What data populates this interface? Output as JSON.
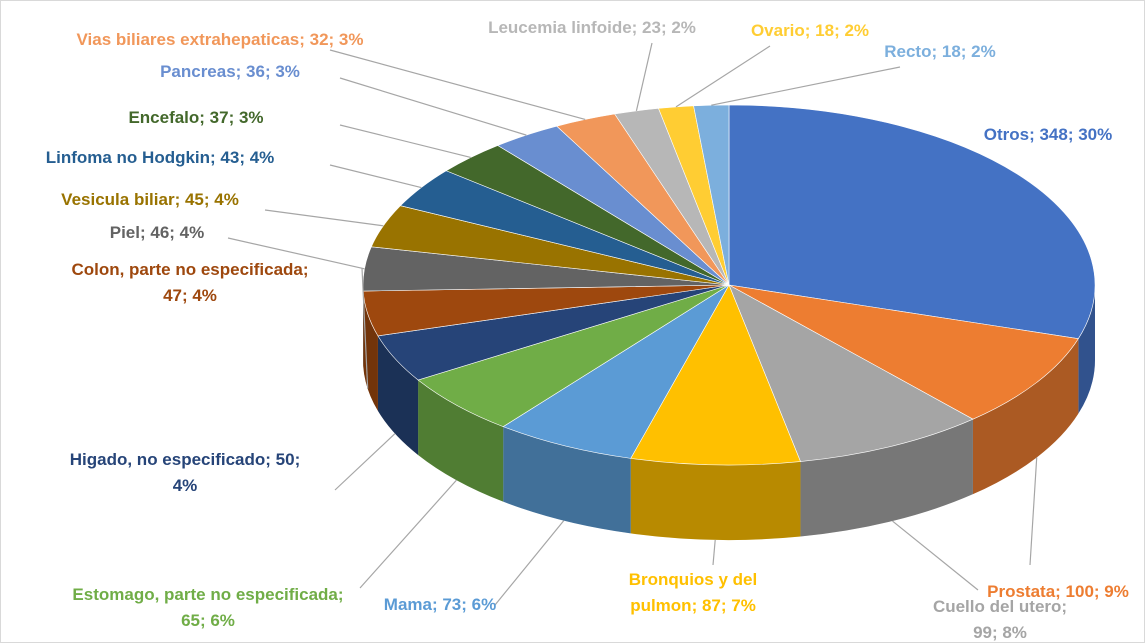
{
  "chart_data": {
    "type": "pie3d",
    "categories": [
      "Otros",
      "Prostata",
      "Cuello del utero",
      "Bronquios y del pulmon",
      "Mama",
      "Estomago, parte no especificada",
      "Higado, no especificado",
      "Colon, parte no especificada",
      "Piel",
      "Vesicula biliar",
      "Linfoma no Hodgkin",
      "Encefalo",
      "Pancreas",
      "Vias biliares extrahepaticas",
      "Leucemia linfoide",
      "Ovario",
      "Recto"
    ],
    "values": [
      348,
      100,
      99,
      87,
      73,
      65,
      50,
      47,
      46,
      45,
      43,
      37,
      36,
      32,
      23,
      18,
      18
    ],
    "value_labels": [
      "Otros; 348; 30%",
      "Prostata; 100; 9%",
      "Cuello del utero;\n99; 8%",
      "Bronquios y del\npulmon; 87; 7%",
      "Mama; 73; 6%",
      "Estomago, parte no especificada;\n65; 6%",
      "Higado, no especificado; 50;\n4%",
      "Colon, parte no especificada;\n47; 4%",
      "Piel; 46; 4%",
      "Vesicula biliar; 45; 4%",
      "Linfoma no Hodgkin; 43; 4%",
      "Encefalo; 37; 3%",
      "Pancreas; 36; 3%",
      "Vias biliares extrahepaticas; 32; 3%",
      "Leucemia linfoide; 23; 2%",
      "Ovario; 18; 2%",
      "Recto; 18; 2%"
    ],
    "colors": [
      "#4472c4",
      "#ed7d31",
      "#a5a5a5",
      "#ffc000",
      "#5b9bd5",
      "#70ad47",
      "#264478",
      "#9e480e",
      "#636363",
      "#997300",
      "#255e91",
      "#43682b",
      "#698ed0",
      "#f1975a",
      "#b7b7b7",
      "#ffcd33",
      "#7cafdd"
    ]
  }
}
